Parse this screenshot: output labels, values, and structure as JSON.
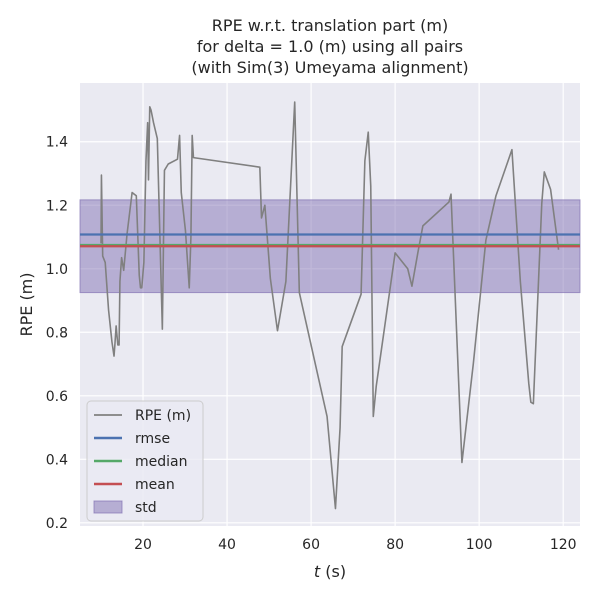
{
  "chart_data": {
    "type": "line",
    "title_lines": [
      "RPE w.r.t. translation part (m)",
      "for delta = 1.0 (m) using all pairs",
      "(with Sim(3) Umeyama alignment)"
    ],
    "xlabel_italic": "t",
    "xlabel_rest": " (s)",
    "ylabel": "RPE (m)",
    "xlim": [
      5,
      124
    ],
    "ylim": [
      0.19,
      1.585
    ],
    "xticks": [
      20,
      40,
      60,
      80,
      100,
      120
    ],
    "xtick_labels": [
      "20",
      "40",
      "60",
      "80",
      "100",
      "120"
    ],
    "yticks": [
      0.2,
      0.4,
      0.6,
      0.8,
      1.0,
      1.2,
      1.4
    ],
    "ytick_labels": [
      "0.2",
      "0.4",
      "0.6",
      "0.8",
      "1.0",
      "1.2",
      "1.4"
    ],
    "grid": true,
    "legend_position": "lower-left",
    "series": [
      {
        "name": "RPE (m)",
        "color": "#808080",
        "x": [
          10.0,
          10.1,
          10.4,
          11.0,
          11.8,
          12.6,
          13.1,
          13.3,
          13.6,
          14.0,
          14.3,
          14.5,
          14.9,
          15.4,
          16.2,
          17.4,
          18.4,
          19.1,
          19.4,
          19.7,
          20.2,
          20.7,
          21.1,
          21.3,
          21.6,
          21.9,
          22.5,
          23.4,
          24.6,
          25.1,
          26.0,
          28.2,
          28.7,
          29.1,
          30.1,
          31.0,
          31.4,
          31.7,
          32.0,
          47.8,
          48.2,
          49.0,
          50.3,
          52.0,
          54.0,
          56.1,
          57.2,
          63.8,
          65.8,
          66.9,
          67.4,
          71.9,
          72.8,
          73.6,
          74.2,
          74.8,
          75.5,
          80.0,
          83.0,
          84.0,
          85.4,
          86.6,
          92.8,
          93.3,
          95.9,
          98.6,
          101.6,
          104.0,
          107.8,
          109.8,
          111.8,
          112.3,
          112.9,
          114.9,
          115.5,
          117.0,
          118.9
        ],
        "values": [
          1.08,
          1.295,
          1.04,
          1.02,
          0.87,
          0.77,
          0.725,
          0.76,
          0.82,
          0.76,
          0.76,
          0.96,
          1.035,
          0.995,
          1.11,
          1.24,
          1.23,
          0.98,
          0.94,
          0.94,
          1.02,
          1.34,
          1.46,
          1.28,
          1.51,
          1.5,
          1.46,
          1.41,
          0.81,
          1.31,
          1.33,
          1.345,
          1.42,
          1.24,
          1.12,
          0.94,
          1.1,
          1.42,
          1.35,
          1.32,
          1.16,
          1.2,
          0.97,
          0.805,
          0.96,
          1.525,
          0.925,
          0.535,
          0.245,
          0.5,
          0.755,
          0.92,
          1.34,
          1.43,
          1.26,
          0.535,
          0.63,
          1.05,
          1.0,
          0.945,
          1.05,
          1.135,
          1.21,
          1.235,
          0.39,
          0.7,
          1.09,
          1.23,
          1.375,
          0.96,
          0.64,
          0.58,
          0.575,
          1.205,
          1.305,
          1.25,
          1.06
        ]
      },
      {
        "name": "rmse",
        "color": "#4c72b0",
        "value": 1.108
      },
      {
        "name": "median",
        "color": "#55a868",
        "value": 1.075
      },
      {
        "name": "mean",
        "color": "#c44e52",
        "value": 1.071
      },
      {
        "name": "std",
        "color": "#8172b3",
        "fill_opacity": 0.5,
        "lower": 0.925,
        "upper": 1.217
      }
    ]
  }
}
